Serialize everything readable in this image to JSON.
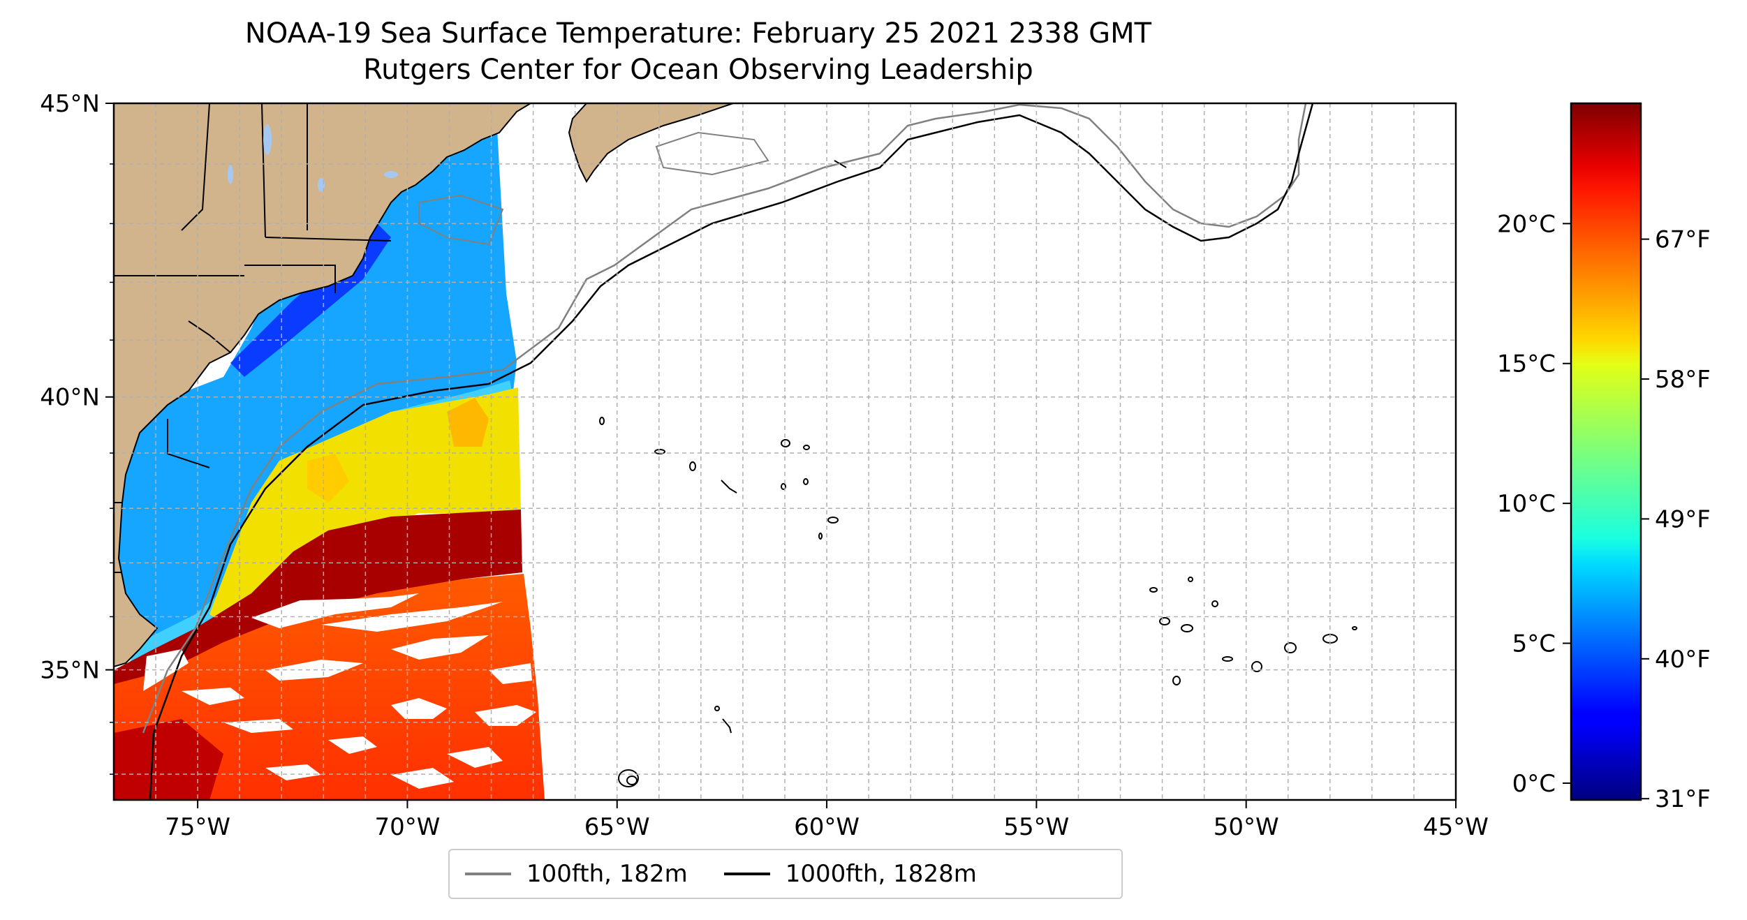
{
  "title": {
    "line1": "NOAA-19 Sea Surface Temperature: February 25 2021 2338 GMT",
    "line2": "Rutgers Center for Ocean Observing Leadership"
  },
  "map": {
    "lon_range": [
      -77,
      -45
    ],
    "lat_range": [
      32.5,
      45
    ],
    "lon_ticks": [
      {
        "value": -75,
        "label": "75°W"
      },
      {
        "value": -70,
        "label": "70°W"
      },
      {
        "value": -65,
        "label": "65°W"
      },
      {
        "value": -60,
        "label": "60°W"
      },
      {
        "value": -55,
        "label": "55°W"
      },
      {
        "value": -50,
        "label": "50°W"
      },
      {
        "value": -45,
        "label": "45°W"
      }
    ],
    "lat_ticks": [
      {
        "value": 35,
        "label": "35°N"
      },
      {
        "value": 40,
        "label": "40°N"
      },
      {
        "value": 45,
        "label": "45°N"
      }
    ],
    "gridlines": "dashed, every 1°",
    "colors": {
      "land": "#d2b48c",
      "lakes": "#a6c8f0",
      "ocean_no_data": "#ffffff"
    }
  },
  "colorbar": {
    "range_c": [
      -0.6,
      24.3
    ],
    "celsius_ticks": [
      {
        "value": 0,
        "label": "0°C"
      },
      {
        "value": 5,
        "label": "5°C"
      },
      {
        "value": 10,
        "label": "10°C"
      },
      {
        "value": 15,
        "label": "15°C"
      },
      {
        "value": 20,
        "label": "20°C"
      }
    ],
    "fahrenheit_ticks": [
      {
        "value": 31,
        "label": "31°F"
      },
      {
        "value": 40,
        "label": "40°F"
      },
      {
        "value": 49,
        "label": "49°F"
      },
      {
        "value": 58,
        "label": "58°F"
      },
      {
        "value": 67,
        "label": "67°F"
      }
    ],
    "colormap": "jet"
  },
  "legend": {
    "items": [
      {
        "label": "100fth, 182m",
        "color": "#808080"
      },
      {
        "label": "1000fth, 1828m",
        "color": "#000000"
      }
    ]
  }
}
